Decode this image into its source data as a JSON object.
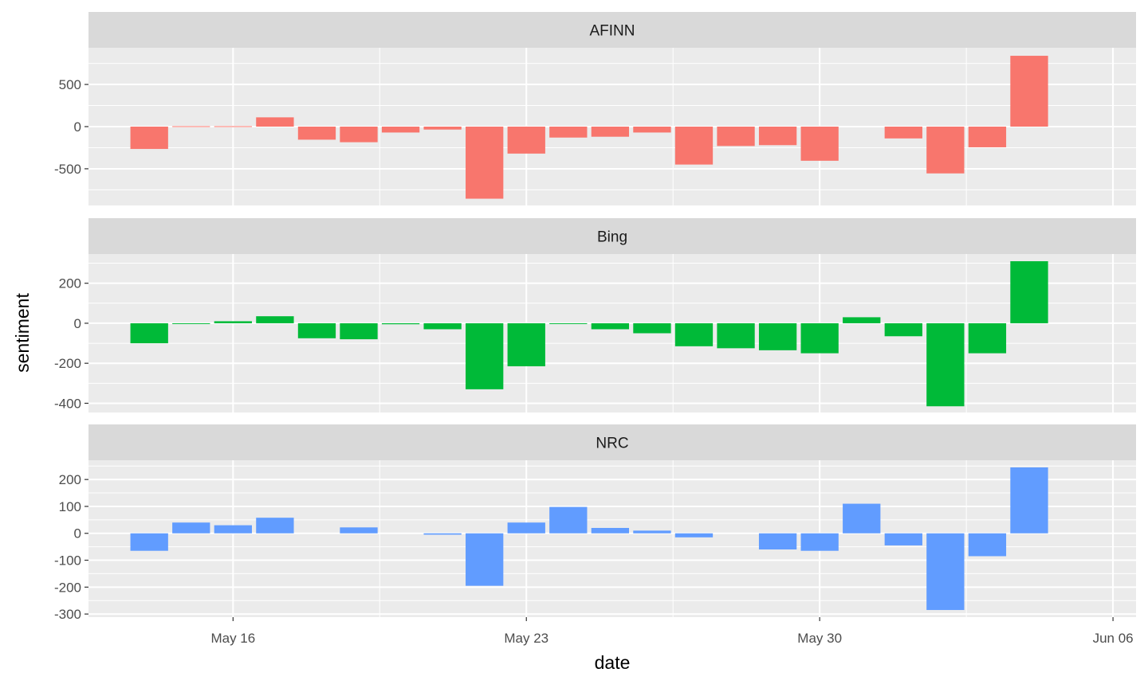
{
  "chart_data": {
    "type": "bar",
    "xlabel": "date",
    "ylabel": "sentiment",
    "x_ticks": [
      {
        "date": "2021-05-16",
        "label": "May 16"
      },
      {
        "date": "2021-05-23",
        "label": "May 23"
      },
      {
        "date": "2021-05-30",
        "label": "May 30"
      },
      {
        "date": "2021-06-06",
        "label": "Jun 06"
      }
    ],
    "xlim": [
      "2021-05-12",
      "2021-06-06"
    ],
    "legend": "none",
    "grid": true,
    "dates": [
      "2021-05-14",
      "2021-05-15",
      "2021-05-16",
      "2021-05-17",
      "2021-05-18",
      "2021-05-19",
      "2021-05-20",
      "2021-05-21",
      "2021-05-22",
      "2021-05-23",
      "2021-05-24",
      "2021-05-25",
      "2021-05-26",
      "2021-05-27",
      "2021-05-28",
      "2021-05-29",
      "2021-05-30",
      "2021-05-31",
      "2021-06-01",
      "2021-06-02",
      "2021-06-03",
      "2021-06-04"
    ],
    "panels": [
      {
        "name": "AFINN",
        "color": "#F8766D",
        "ylim": [
          -850,
          850
        ],
        "y_ticks": [
          500,
          0,
          -500
        ],
        "y_tick_labels": [
          "500",
          "0",
          "-500"
        ],
        "values": [
          -265,
          5,
          5,
          110,
          -155,
          -185,
          -70,
          -35,
          -855,
          -320,
          -130,
          -120,
          -70,
          -450,
          -230,
          -220,
          -405,
          null,
          -140,
          -555,
          -245,
          840
        ]
      },
      {
        "name": "Bing",
        "color": "#00BA38",
        "ylim": [
          -410,
          310
        ],
        "y_ticks": [
          200,
          0,
          -200,
          -400
        ],
        "y_tick_labels": [
          "200",
          "0",
          "-200",
          "-400"
        ],
        "values": [
          -100,
          -3,
          10,
          35,
          -75,
          -80,
          -5,
          -30,
          -330,
          -215,
          -2,
          -30,
          -50,
          -115,
          -125,
          -135,
          -150,
          30,
          -65,
          -415,
          -150,
          310
        ]
      },
      {
        "name": "NRC",
        "color": "#619CFF",
        "ylim": [
          -285,
          245
        ],
        "y_ticks": [
          200,
          100,
          0,
          -100,
          -200,
          -300
        ],
        "y_tick_labels": [
          "200",
          "100",
          "0",
          "-100",
          "-200",
          "-300"
        ],
        "values": [
          -65,
          40,
          30,
          58,
          null,
          22,
          null,
          -5,
          -195,
          40,
          98,
          20,
          10,
          -15,
          null,
          -60,
          -65,
          110,
          -45,
          -285,
          -85,
          245
        ]
      }
    ]
  }
}
